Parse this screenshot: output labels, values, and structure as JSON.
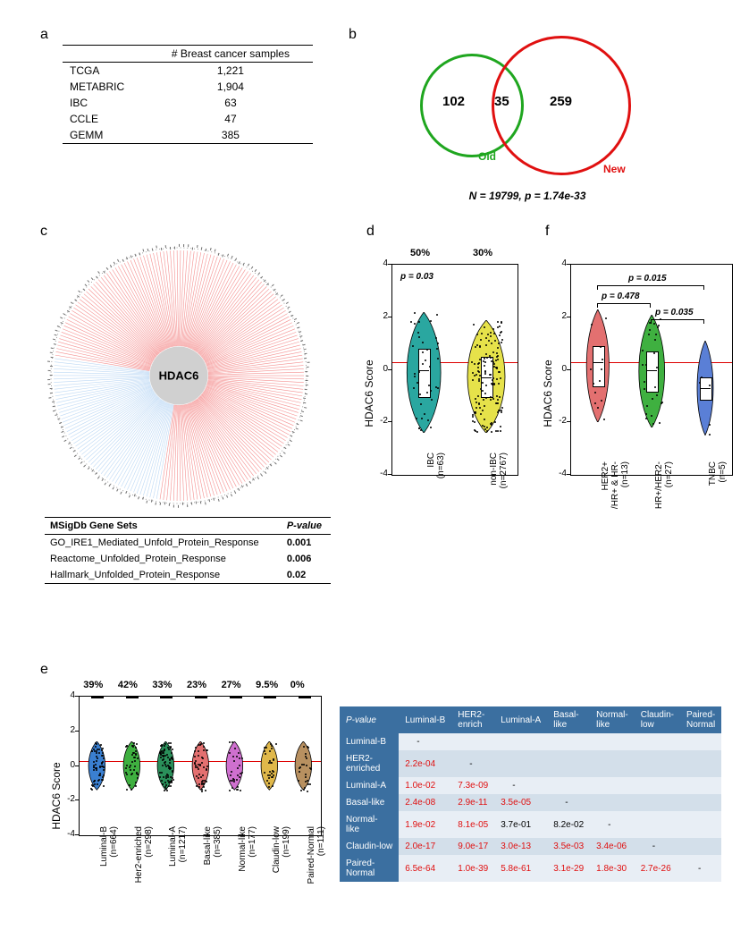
{
  "panel_labels": {
    "a": "a",
    "b": "b",
    "c": "c",
    "d": "d",
    "e": "e",
    "f": "f"
  },
  "panel_a": {
    "header": "# Breast cancer samples",
    "rows": [
      {
        "name": "TCGA",
        "n": "1,221"
      },
      {
        "name": "METABRIC",
        "n": "1,904"
      },
      {
        "name": "IBC",
        "n": "63"
      },
      {
        "name": "CCLE",
        "n": "47"
      },
      {
        "name": "GEMM",
        "n": "385"
      }
    ]
  },
  "panel_b": {
    "left_count": "102",
    "overlap_count": "35",
    "right_count": "259",
    "left_label": "Old",
    "right_label": "New",
    "left_color": "#1fa61f",
    "right_color": "#e01010",
    "caption": "N = 19799, p = 1.74e-33"
  },
  "panel_c": {
    "hub_label": "HDAC6",
    "spokes_red": 190,
    "spokes_blue": 40,
    "red_color": "#f06060",
    "blue_color": "#a0c8f0",
    "msig_header_set": "MSigDb Gene Sets",
    "msig_header_p": "P-value",
    "msig_rows": [
      {
        "name": "GO_IRE1_Mediated_Unfold_Protein_Response",
        "p": "0.001"
      },
      {
        "name": "Reactome_Unfolded_Protein_Response",
        "p": "0.006"
      },
      {
        "name": "Hallmark_Unfolded_Protein_Response",
        "p": "0.02"
      }
    ]
  },
  "panel_d": {
    "yaxis_label": "HDAC6 Score",
    "ylim": [
      -4,
      4
    ],
    "yticks": [
      -4,
      -2,
      0,
      2,
      4
    ],
    "pvalue": "p = 0.03",
    "ref_y": 0.3,
    "percents": [
      "50%",
      "30%"
    ],
    "groups": [
      {
        "label": "IBC\n(n=63)",
        "color": "#2aa7a0",
        "median": 0.0,
        "q1": -1.0,
        "q3": 0.8,
        "width": 0.9
      },
      {
        "label": "non-IBC\n(n=2767)",
        "color": "#e6e24a",
        "median": -0.3,
        "q1": -1.0,
        "q3": 0.5,
        "width": 1.0
      }
    ]
  },
  "panel_f": {
    "yaxis_label": "HDAC6 Score",
    "ylim": [
      -4,
      4
    ],
    "yticks": [
      -4,
      -2,
      0,
      2,
      4
    ],
    "ref_y": 0.3,
    "pvals": [
      {
        "text": "p = 0.015",
        "from": 0,
        "to": 2,
        "y": 3.2
      },
      {
        "text": "p = 0.478",
        "from": 0,
        "to": 1,
        "y": 2.5
      },
      {
        "text": "p = 0.035",
        "from": 1,
        "to": 2,
        "y": 1.9
      }
    ],
    "groups": [
      {
        "label": "HER2+\n/HR+ & HR-\n(n=13)",
        "color": "#e37070",
        "median": 0.3,
        "q1": -0.6,
        "q3": 0.9,
        "width": 0.7
      },
      {
        "label": "HR+/HER2-\n(n=27)",
        "color": "#3fb040",
        "median": 0.0,
        "q1": -0.8,
        "q3": 0.7,
        "width": 0.8
      },
      {
        "label": "TNBC\n(n=5)",
        "color": "#5a7fd6",
        "median": -0.7,
        "q1": -1.1,
        "q3": -0.3,
        "width": 0.5
      }
    ]
  },
  "panel_e": {
    "yaxis_label": "HDAC6 Score",
    "ylim": [
      -4,
      4
    ],
    "yticks": [
      -4,
      -2,
      0,
      2,
      4
    ],
    "ref_y": 0.3,
    "percents": [
      "39%",
      "42%",
      "33%",
      "23%",
      "27%",
      "9.5%",
      "0%"
    ],
    "groups": [
      {
        "label": "Luminal-B\n(n=664)",
        "color": "#3a7fd0"
      },
      {
        "label": "Her2-enriched\n(n=298)",
        "color": "#3fb040"
      },
      {
        "label": "Luminal-A\n(n=1217)",
        "color": "#2a8f5a"
      },
      {
        "label": "Basal-like\n(n=385)",
        "color": "#e37070"
      },
      {
        "label": "Normal-like\n(n=177)",
        "color": "#cf70cf"
      },
      {
        "label": "Claudin-low\n(n=199)",
        "color": "#e0b84a"
      },
      {
        "label": "Paired-Normal\n(n=111)",
        "color": "#b89060"
      }
    ],
    "table": {
      "header": [
        "P-value",
        "Luminal-B",
        "HER2-enrich",
        "Luminal-A",
        "Basal-like",
        "Normal-like",
        "Claudin-low",
        "Paired-Normal"
      ],
      "rows": [
        {
          "name": "Luminal-B",
          "cells": [
            "-",
            "",
            "",
            "",
            "",
            "",
            ""
          ]
        },
        {
          "name": "HER2-\nenriched",
          "cells": [
            "2.2e-04",
            "-",
            "",
            "",
            "",
            "",
            ""
          ]
        },
        {
          "name": "Luminal-A",
          "cells": [
            "1.0e-02",
            "7.3e-09",
            "-",
            "",
            "",
            "",
            ""
          ]
        },
        {
          "name": "Basal-like",
          "cells": [
            "2.4e-08",
            "2.9e-11",
            "3.5e-05",
            "-",
            "",
            "",
            ""
          ]
        },
        {
          "name": "Normal-\nlike",
          "cells": [
            "1.9e-02",
            "8.1e-05",
            "3.7e-01",
            "8.2e-02",
            "-",
            "",
            ""
          ]
        },
        {
          "name": "Claudin-low",
          "cells": [
            "2.0e-17",
            "9.0e-17",
            "3.0e-13",
            "3.5e-03",
            "3.4e-06",
            "-",
            ""
          ]
        },
        {
          "name": "Paired-\nNormal",
          "cells": [
            "6.5e-64",
            "1.0e-39",
            "5.8e-61",
            "3.1e-29",
            "1.8e-30",
            "2.7e-26",
            "-"
          ]
        }
      ],
      "nonsig": [
        "3.7e-01",
        "8.2e-02"
      ],
      "header_bg": "#3b6fa0",
      "header_fg": "#ffffff",
      "row_even_bg": "#e8eef5",
      "row_odd_bg": "#d3dfea",
      "sig_color": "#e01010"
    }
  }
}
